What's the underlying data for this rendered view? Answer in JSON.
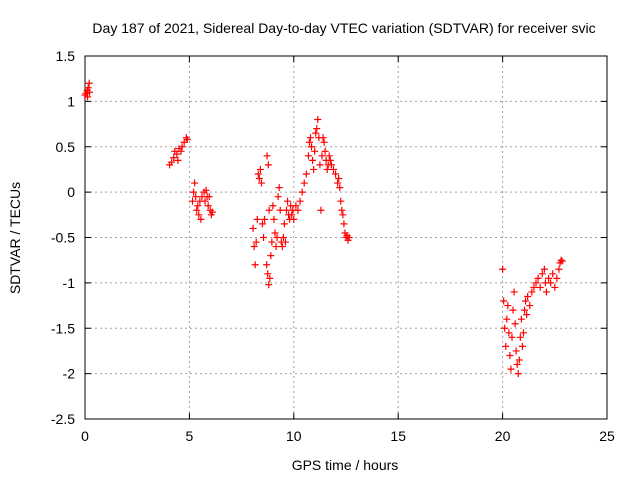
{
  "chart_data": {
    "type": "scatter",
    "title": "Day 187 of 2021, Sidereal Day-to-day VTEC variation (SDTVAR) for receiver svic",
    "xlabel": "GPS time / hours",
    "ylabel": "SDTVAR / TECUs",
    "xlim": [
      0,
      25
    ],
    "ylim": [
      -2.5,
      1.5
    ],
    "x_ticks": [
      0,
      5,
      10,
      15,
      20,
      25
    ],
    "y_ticks": [
      -2.5,
      -2,
      -1.5,
      -1,
      -0.5,
      0,
      0.5,
      1,
      1.5
    ],
    "x_tick_labels": [
      "0",
      "5",
      "10",
      "15",
      "20",
      "25"
    ],
    "y_tick_labels": [
      "-2.5",
      "-2",
      "-1.5",
      "-1",
      "-0.5",
      "0",
      "0.5",
      "1",
      "1.5"
    ],
    "grid": true,
    "marker": "+",
    "marker_color": "#ff0000",
    "series": [
      {
        "name": "SDTVAR",
        "points": [
          [
            0.0,
            1.07
          ],
          [
            0.05,
            1.09
          ],
          [
            0.1,
            1.12
          ],
          [
            0.15,
            1.15
          ],
          [
            0.2,
            1.2
          ],
          [
            0.22,
            1.1
          ],
          [
            0.12,
            1.05
          ],
          [
            4.05,
            0.3
          ],
          [
            4.15,
            0.33
          ],
          [
            4.25,
            0.38
          ],
          [
            4.3,
            0.45
          ],
          [
            4.4,
            0.42
          ],
          [
            4.5,
            0.48
          ],
          [
            4.6,
            0.45
          ],
          [
            4.65,
            0.5
          ],
          [
            4.75,
            0.55
          ],
          [
            4.85,
            0.6
          ],
          [
            4.9,
            0.58
          ],
          [
            4.45,
            0.35
          ],
          [
            5.15,
            -0.1
          ],
          [
            5.2,
            0.0
          ],
          [
            5.25,
            0.1
          ],
          [
            5.3,
            -0.05
          ],
          [
            5.35,
            -0.2
          ],
          [
            5.4,
            -0.15
          ],
          [
            5.45,
            -0.25
          ],
          [
            5.5,
            -0.1
          ],
          [
            5.55,
            -0.3
          ],
          [
            5.6,
            -0.05
          ],
          [
            5.7,
            0.0
          ],
          [
            5.75,
            -0.1
          ],
          [
            5.8,
            0.02
          ],
          [
            5.85,
            -0.05
          ],
          [
            5.9,
            -0.15
          ],
          [
            5.95,
            -0.05
          ],
          [
            6.0,
            -0.2
          ],
          [
            6.05,
            -0.25
          ],
          [
            6.1,
            -0.22
          ],
          [
            8.05,
            -0.4
          ],
          [
            8.1,
            -0.6
          ],
          [
            8.15,
            -0.8
          ],
          [
            8.2,
            -0.55
          ],
          [
            8.25,
            -0.3
          ],
          [
            8.3,
            0.2
          ],
          [
            8.35,
            0.15
          ],
          [
            8.4,
            0.25
          ],
          [
            8.45,
            0.1
          ],
          [
            8.5,
            -0.35
          ],
          [
            8.55,
            -0.5
          ],
          [
            8.6,
            -0.3
          ],
          [
            8.7,
            -0.8
          ],
          [
            8.75,
            -0.9
          ],
          [
            8.8,
            -1.02
          ],
          [
            8.85,
            -0.95
          ],
          [
            8.9,
            -0.7
          ],
          [
            8.95,
            -0.55
          ],
          [
            8.72,
            0.4
          ],
          [
            8.78,
            0.3
          ],
          [
            8.82,
            -0.2
          ],
          [
            9.0,
            -0.15
          ],
          [
            9.05,
            -0.3
          ],
          [
            9.1,
            -0.45
          ],
          [
            9.15,
            -0.6
          ],
          [
            9.2,
            -0.5
          ],
          [
            9.25,
            -0.05
          ],
          [
            9.3,
            0.05
          ],
          [
            9.35,
            -0.2
          ],
          [
            9.4,
            -0.55
          ],
          [
            9.45,
            -0.6
          ],
          [
            9.5,
            -0.5
          ],
          [
            9.55,
            -0.35
          ],
          [
            9.6,
            -0.55
          ],
          [
            9.65,
            -0.2
          ],
          [
            9.7,
            -0.1
          ],
          [
            9.75,
            -0.25
          ],
          [
            9.8,
            -0.3
          ],
          [
            9.85,
            -0.15
          ],
          [
            9.9,
            -0.25
          ],
          [
            9.95,
            -0.2
          ],
          [
            10.0,
            -0.3
          ],
          [
            10.1,
            -0.15
          ],
          [
            10.2,
            -0.2
          ],
          [
            10.3,
            -0.1
          ],
          [
            10.4,
            0.0
          ],
          [
            10.5,
            0.1
          ],
          [
            10.6,
            0.2
          ],
          [
            10.7,
            0.4
          ],
          [
            10.75,
            0.55
          ],
          [
            10.8,
            0.6
          ],
          [
            10.85,
            0.5
          ],
          [
            10.9,
            0.35
          ],
          [
            10.95,
            0.25
          ],
          [
            11.0,
            0.45
          ],
          [
            11.05,
            0.65
          ],
          [
            11.1,
            0.7
          ],
          [
            11.15,
            0.8
          ],
          [
            11.2,
            0.6
          ],
          [
            11.25,
            0.3
          ],
          [
            11.3,
            -0.2
          ],
          [
            11.35,
            0.4
          ],
          [
            11.4,
            0.6
          ],
          [
            11.45,
            0.55
          ],
          [
            11.5,
            0.45
          ],
          [
            11.55,
            0.35
          ],
          [
            11.6,
            0.25
          ],
          [
            11.65,
            0.3
          ],
          [
            11.7,
            0.4
          ],
          [
            11.75,
            0.35
          ],
          [
            11.8,
            0.3
          ],
          [
            11.9,
            0.25
          ],
          [
            12.0,
            0.2
          ],
          [
            12.1,
            0.1
          ],
          [
            12.15,
            0.15
          ],
          [
            12.2,
            0.05
          ],
          [
            12.25,
            -0.1
          ],
          [
            12.3,
            -0.2
          ],
          [
            12.35,
            -0.25
          ],
          [
            12.4,
            -0.35
          ],
          [
            12.45,
            -0.45
          ],
          [
            12.5,
            -0.5
          ],
          [
            12.55,
            -0.48
          ],
          [
            12.6,
            -0.53
          ],
          [
            12.65,
            -0.5
          ],
          [
            20.0,
            -0.85
          ],
          [
            20.05,
            -1.2
          ],
          [
            20.1,
            -1.5
          ],
          [
            20.15,
            -1.7
          ],
          [
            20.2,
            -1.4
          ],
          [
            20.25,
            -1.25
          ],
          [
            20.3,
            -1.55
          ],
          [
            20.35,
            -1.8
          ],
          [
            20.4,
            -1.95
          ],
          [
            20.45,
            -1.6
          ],
          [
            20.5,
            -1.3
          ],
          [
            20.55,
            -1.1
          ],
          [
            20.6,
            -1.45
          ],
          [
            20.65,
            -1.75
          ],
          [
            20.7,
            -1.9
          ],
          [
            20.75,
            -2.0
          ],
          [
            20.8,
            -1.85
          ],
          [
            20.85,
            -1.6
          ],
          [
            20.9,
            -1.4
          ],
          [
            20.95,
            -1.7
          ],
          [
            21.0,
            -1.55
          ],
          [
            21.05,
            -1.3
          ],
          [
            21.1,
            -1.2
          ],
          [
            21.15,
            -1.35
          ],
          [
            21.2,
            -1.15
          ],
          [
            21.3,
            -1.25
          ],
          [
            21.4,
            -1.1
          ],
          [
            21.5,
            -1.05
          ],
          [
            21.6,
            -1.0
          ],
          [
            21.7,
            -0.95
          ],
          [
            21.8,
            -1.05
          ],
          [
            21.9,
            -0.9
          ],
          [
            22.0,
            -0.85
          ],
          [
            22.05,
            -1.0
          ],
          [
            22.1,
            -1.1
          ],
          [
            22.2,
            -0.95
          ],
          [
            22.3,
            -1.0
          ],
          [
            22.4,
            -0.9
          ],
          [
            22.5,
            -1.05
          ],
          [
            22.6,
            -0.95
          ],
          [
            22.7,
            -0.85
          ],
          [
            22.75,
            -0.78
          ],
          [
            22.8,
            -0.75
          ],
          [
            22.85,
            -0.76
          ]
        ]
      }
    ]
  }
}
